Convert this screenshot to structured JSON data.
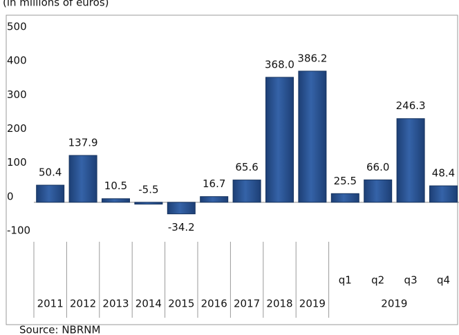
{
  "chart_data": {
    "type": "bar",
    "title": "(in millions of euros)",
    "source": "Source: NBRNM",
    "categories": [
      "2011",
      "2012",
      "2013",
      "2014",
      "2015",
      "2016",
      "2017",
      "2018",
      "2019",
      "q1",
      "q2",
      "q3",
      "q4"
    ],
    "category_group": {
      "label": "2019",
      "from": 9,
      "to": 12
    },
    "values": [
      50.4,
      137.9,
      10.5,
      -5.5,
      -34.2,
      16.7,
      65.6,
      368.0,
      386.2,
      25.5,
      66.0,
      246.3,
      48.4
    ],
    "value_labels": [
      "50.4",
      "137.9",
      "10.5",
      "-5.5",
      "-34.2",
      "16.7",
      "65.6",
      "368.0",
      "386.2",
      "25.5",
      "66.0",
      "246.3",
      "48.4"
    ],
    "color": "#2a5494",
    "ylim": [
      -100,
      500
    ],
    "yticks": [
      -100,
      0,
      100,
      200,
      300,
      400,
      500
    ]
  }
}
